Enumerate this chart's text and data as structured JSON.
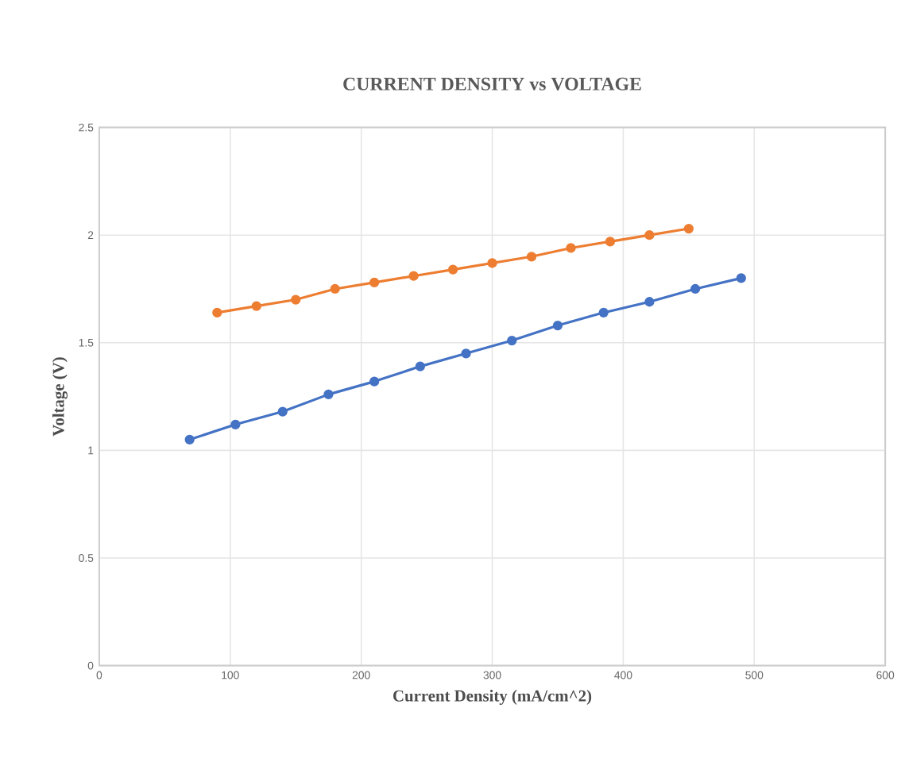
{
  "chart_data": {
    "type": "line",
    "title": "CURRENT DENSITY vs VOLTAGE",
    "xlabel": "Current Density (mA/cm^2)",
    "ylabel": "Voltage (V)",
    "series": [
      {
        "color": "#4472c4",
        "x": [
          69,
          104,
          140,
          175,
          210,
          245,
          280,
          315,
          350,
          385,
          420,
          455,
          490
        ],
        "values": [
          1.05,
          1.12,
          1.18,
          1.26,
          1.32,
          1.39,
          1.45,
          1.51,
          1.58,
          1.64,
          1.69,
          1.75,
          1.8
        ]
      },
      {
        "color": "#ed7d31",
        "x": [
          90,
          120,
          150,
          180,
          210,
          240,
          270,
          300,
          330,
          360,
          390,
          420,
          450
        ],
        "values": [
          1.64,
          1.67,
          1.7,
          1.75,
          1.78,
          1.81,
          1.84,
          1.87,
          1.9,
          1.94,
          1.97,
          2.0,
          2.03
        ]
      }
    ],
    "xlim": [
      0,
      600
    ],
    "xticks": [
      0,
      100,
      200,
      300,
      400,
      500,
      600
    ],
    "ylim": [
      0,
      2.5
    ],
    "yticks": [
      0,
      0.5,
      1,
      1.5,
      2,
      2.5
    ],
    "grid": true,
    "marker": "circle",
    "line_style": "solid"
  }
}
